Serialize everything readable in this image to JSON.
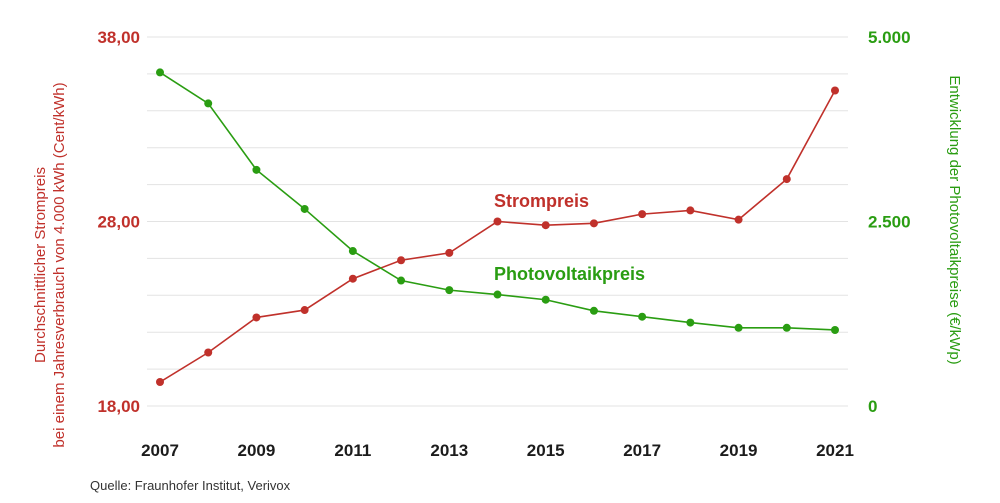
{
  "chart_data": {
    "type": "line",
    "x": [
      2007,
      2008,
      2009,
      2010,
      2011,
      2012,
      2013,
      2014,
      2015,
      2016,
      2017,
      2018,
      2019,
      2020,
      2021
    ],
    "x_tick_labels": [
      "2007",
      "2009",
      "2011",
      "2013",
      "2015",
      "2017",
      "2019",
      "2021"
    ],
    "series": [
      {
        "name": "Strompreis",
        "axis": "left",
        "color": "#c0312b",
        "values": [
          19.3,
          20.9,
          22.8,
          23.2,
          24.9,
          25.9,
          26.3,
          28.0,
          27.8,
          27.9,
          28.4,
          28.6,
          28.1,
          30.3,
          35.1
        ]
      },
      {
        "name": "Photovoltaikpreis",
        "axis": "right",
        "color": "#2a9d12",
        "values": [
          4520,
          4100,
          3200,
          2670,
          2100,
          1700,
          1570,
          1510,
          1440,
          1290,
          1210,
          1130,
          1060,
          1060,
          1030
        ]
      }
    ],
    "y_left": {
      "label_line1": "Durchschnittlicher Strompreis",
      "label_line2": "bei einem Jahresverbrauch von 4.000 kWh (Cent/kWh)",
      "min": 18,
      "max": 38,
      "tick_labels": [
        "38,00",
        "28,00",
        "18,00"
      ],
      "tick_values": [
        38,
        28,
        18
      ],
      "color": "#c0312b"
    },
    "y_right": {
      "label": "Entwicklung der Photovoltaikpreise (€/kWp)",
      "min": 0,
      "max": 5000,
      "tick_labels": [
        "5.000",
        "2.500",
        "0"
      ],
      "tick_values": [
        5000,
        2500,
        0
      ],
      "color": "#2a9d12"
    },
    "grid": true,
    "grid_lines": 11
  },
  "source": "Quelle: Fraunhofer Institut, Verivox"
}
